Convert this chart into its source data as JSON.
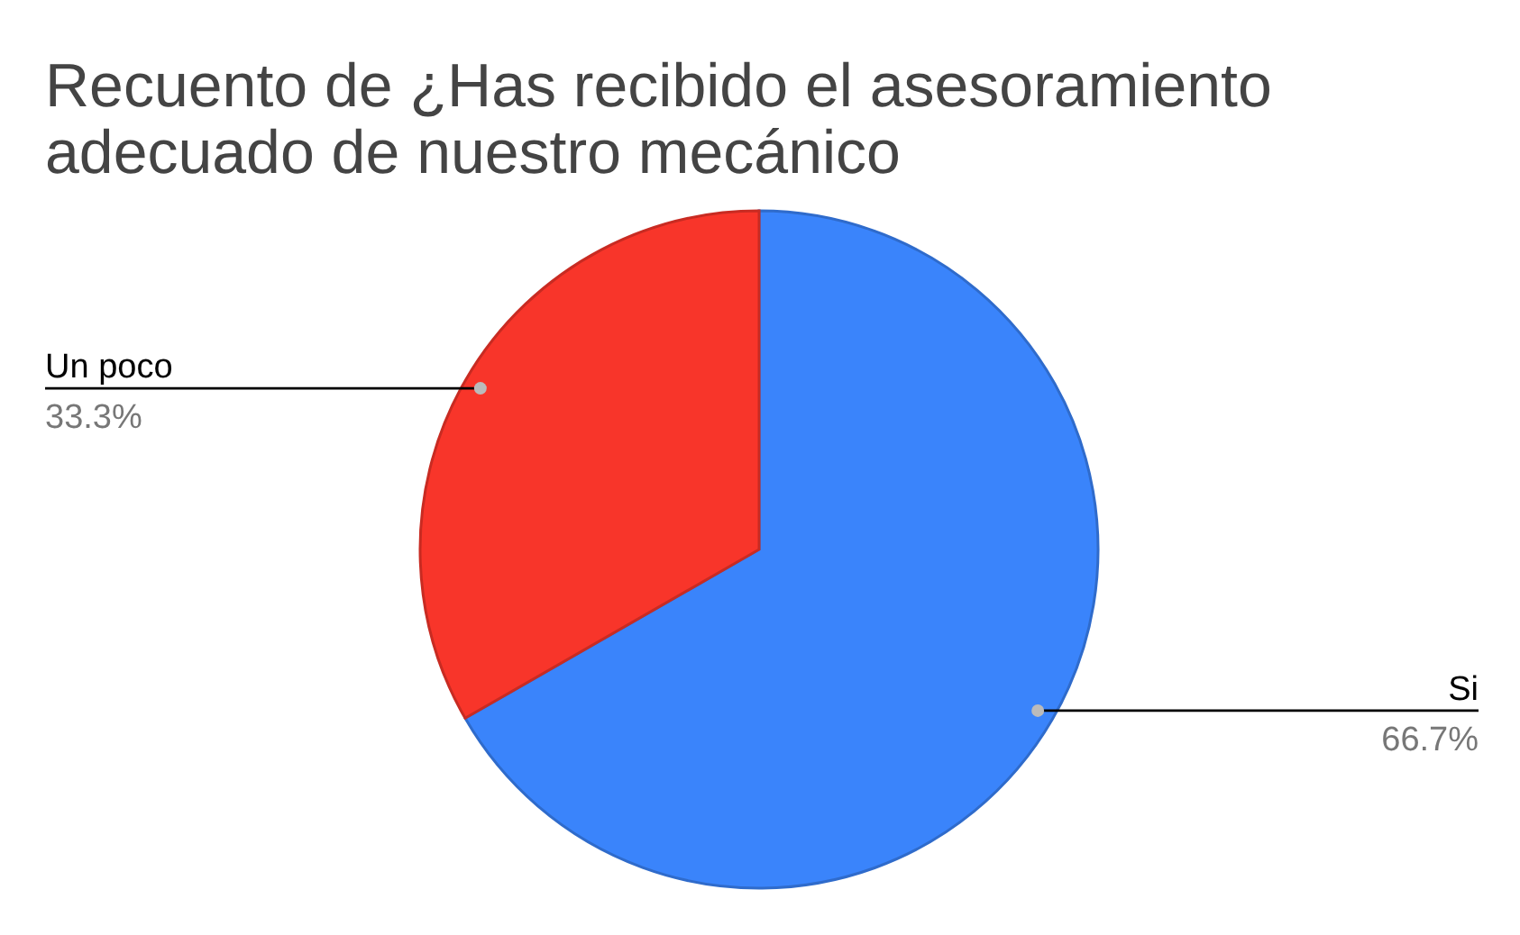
{
  "chart_data": {
    "type": "pie",
    "title": "Recuento de ¿Has recibido el asesoramiento adecuado de nuestro mecánico",
    "categories": [
      "Si",
      "Un poco"
    ],
    "values": [
      66.7,
      33.3
    ],
    "colors": [
      "#3a84fb",
      "#f8352a"
    ],
    "value_labels": [
      "66.7%",
      "33.3%"
    ]
  }
}
